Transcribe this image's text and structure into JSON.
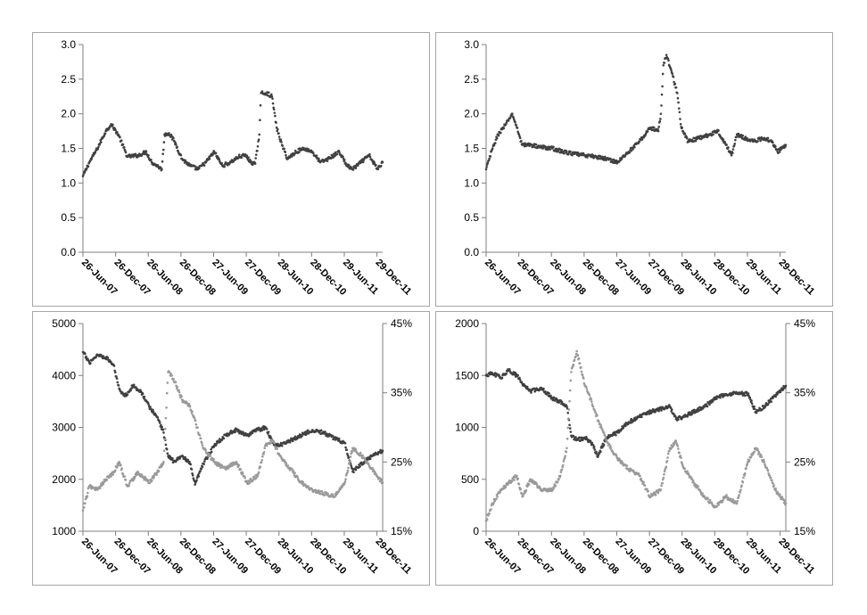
{
  "colors": {
    "primary_series": "#404040",
    "secondary_series": "#9a9a9a",
    "axis": "#7f7f7f",
    "panel_border": "#a6a6a6"
  },
  "chart_data": [
    {
      "type": "scatter",
      "title": "",
      "xlabel": "",
      "ylabel": "",
      "grid": false,
      "x_tick_labels": [
        "26-Jun-07",
        "26-Dec-07",
        "26-Jun-08",
        "26-Dec-08",
        "27-Jun-09",
        "27-Dec-09",
        "28-Jun-10",
        "28-Dec-10",
        "29-Jun-11",
        "29-Dec-11"
      ],
      "y_tick_labels": [
        "0.0",
        "0.5",
        "1.0",
        "1.5",
        "2.0",
        "2.5",
        "3.0"
      ],
      "xlim": [
        "2007-06-26",
        "2012-01-30"
      ],
      "ylim": [
        0,
        3
      ],
      "series": [
        {
          "x": [
            "2007-06-26",
            "2007-08-01",
            "2007-09-15",
            "2007-11-01",
            "2007-12-01",
            "2008-01-10",
            "2008-03-01",
            "2008-05-01",
            "2008-06-15",
            "2008-07-15",
            "2008-08-15",
            "2008-09-10",
            "2008-09-25",
            "2008-10-20",
            "2008-11-20",
            "2009-01-01",
            "2009-02-15",
            "2009-04-01",
            "2009-05-15",
            "2009-07-01",
            "2009-08-15",
            "2009-10-01",
            "2009-11-15",
            "2009-12-25",
            "2010-01-20",
            "2010-02-15",
            "2010-03-10",
            "2010-03-20",
            "2010-04-20",
            "2010-05-20",
            "2010-06-15",
            "2010-07-15",
            "2010-08-15",
            "2010-10-01",
            "2010-11-15",
            "2011-01-01",
            "2011-02-15",
            "2011-04-01",
            "2011-06-01",
            "2011-07-15",
            "2011-08-15",
            "2011-10-01",
            "2011-11-15",
            "2012-01-01",
            "2012-01-30"
          ],
          "y": [
            1.1,
            1.3,
            1.5,
            1.75,
            1.85,
            1.7,
            1.38,
            1.4,
            1.45,
            1.3,
            1.25,
            1.2,
            1.7,
            1.72,
            1.6,
            1.35,
            1.25,
            1.2,
            1.3,
            1.45,
            1.25,
            1.3,
            1.38,
            1.4,
            1.3,
            1.28,
            1.7,
            2.3,
            2.3,
            2.25,
            1.8,
            1.55,
            1.35,
            1.45,
            1.5,
            1.45,
            1.3,
            1.35,
            1.45,
            1.25,
            1.2,
            1.3,
            1.4,
            1.2,
            1.3
          ]
        }
      ]
    },
    {
      "type": "scatter",
      "title": "",
      "xlabel": "",
      "ylabel": "",
      "grid": false,
      "x_tick_labels": [
        "26-Jun-07",
        "26-Dec-07",
        "26-Jun-08",
        "26-Dec-08",
        "27-Jun-09",
        "27-Dec-09",
        "28-Jun-10",
        "28-Dec-10",
        "29-Jun-11",
        "29-Dec-11"
      ],
      "y_tick_labels": [
        "0.0",
        "0.5",
        "1.0",
        "1.5",
        "2.0",
        "2.5",
        "3.0"
      ],
      "xlim": [
        "2007-06-26",
        "2012-01-30"
      ],
      "ylim": [
        0,
        3
      ],
      "series": [
        {
          "x": [
            "2007-06-26",
            "2007-08-01",
            "2007-09-01",
            "2007-10-15",
            "2007-11-20",
            "2007-12-15",
            "2008-01-15",
            "2008-03-01",
            "2008-05-01",
            "2008-07-01",
            "2008-09-01",
            "2008-11-01",
            "2009-01-01",
            "2009-03-01",
            "2009-05-01",
            "2009-07-01",
            "2009-09-01",
            "2009-11-01",
            "2010-01-01",
            "2010-02-15",
            "2010-03-01",
            "2010-03-15",
            "2010-04-01",
            "2010-05-01",
            "2010-06-01",
            "2010-06-20",
            "2010-07-01",
            "2010-08-01",
            "2010-10-01",
            "2010-12-01",
            "2011-01-15",
            "2011-03-01",
            "2011-04-01",
            "2011-05-01",
            "2011-06-15",
            "2011-08-01",
            "2011-10-01",
            "2011-11-15",
            "2011-12-15",
            "2012-01-30"
          ],
          "y": [
            1.2,
            1.5,
            1.7,
            1.85,
            2.0,
            1.8,
            1.55,
            1.55,
            1.52,
            1.5,
            1.45,
            1.42,
            1.4,
            1.38,
            1.35,
            1.3,
            1.45,
            1.6,
            1.8,
            1.75,
            2.0,
            2.7,
            2.85,
            2.6,
            2.3,
            1.85,
            1.75,
            1.6,
            1.65,
            1.7,
            1.75,
            1.55,
            1.4,
            1.7,
            1.65,
            1.6,
            1.65,
            1.6,
            1.45,
            1.55
          ]
        }
      ]
    },
    {
      "type": "scatter",
      "title": "",
      "xlabel": "",
      "ylabel": "",
      "grid": false,
      "x_tick_labels": [
        "26-Jun-07",
        "26-Dec-07",
        "26-Jun-08",
        "26-Dec-08",
        "27-Jun-09",
        "27-Dec-09",
        "28-Jun-10",
        "28-Dec-10",
        "29-Jun-11",
        "29-Dec-11"
      ],
      "y_tick_labels": [
        "1000",
        "2000",
        "3000",
        "4000",
        "5000"
      ],
      "y2_tick_labels": [
        "15%",
        "25%",
        "35%",
        "45%"
      ],
      "xlim": [
        "2007-06-26",
        "2012-01-30"
      ],
      "ylim": [
        1000,
        5000
      ],
      "y2lim": [
        0.15,
        0.45
      ],
      "series": [
        {
          "axis": "left",
          "x": [
            "2007-06-26",
            "2007-08-01",
            "2007-09-15",
            "2007-11-01",
            "2007-12-15",
            "2008-01-15",
            "2008-02-15",
            "2008-04-01",
            "2008-05-15",
            "2008-07-01",
            "2008-08-15",
            "2008-09-20",
            "2008-10-15",
            "2008-11-15",
            "2009-01-01",
            "2009-02-15",
            "2009-03-15",
            "2009-05-01",
            "2009-07-01",
            "2009-09-01",
            "2009-11-01",
            "2010-01-01",
            "2010-03-01",
            "2010-04-15",
            "2010-05-25",
            "2010-07-01",
            "2010-09-01",
            "2010-11-01",
            "2011-01-01",
            "2011-03-01",
            "2011-05-01",
            "2011-07-01",
            "2011-08-15",
            "2011-10-01",
            "2011-12-01",
            "2012-01-30"
          ],
          "y": [
            4450,
            4250,
            4400,
            4350,
            4200,
            3750,
            3600,
            3800,
            3700,
            3400,
            3200,
            2900,
            2450,
            2350,
            2450,
            2300,
            1900,
            2300,
            2650,
            2850,
            2950,
            2850,
            2950,
            3000,
            2700,
            2650,
            2750,
            2850,
            2950,
            2900,
            2800,
            2700,
            2150,
            2300,
            2450,
            2550
          ]
        },
        {
          "axis": "right",
          "x": [
            "2007-06-26",
            "2007-08-01",
            "2007-09-15",
            "2007-11-01",
            "2007-12-15",
            "2008-01-15",
            "2008-03-01",
            "2008-05-01",
            "2008-07-01",
            "2008-08-15",
            "2008-09-20",
            "2008-10-15",
            "2008-11-15",
            "2009-01-01",
            "2009-02-15",
            "2009-03-15",
            "2009-05-01",
            "2009-07-01",
            "2009-09-01",
            "2009-11-01",
            "2010-01-01",
            "2010-03-01",
            "2010-04-15",
            "2010-05-25",
            "2010-07-01",
            "2010-09-01",
            "2010-11-01",
            "2011-01-01",
            "2011-03-01",
            "2011-05-01",
            "2011-07-01",
            "2011-08-15",
            "2011-10-01",
            "2011-12-01",
            "2012-01-30"
          ],
          "y": [
            0.18,
            0.215,
            0.21,
            0.225,
            0.235,
            0.25,
            0.215,
            0.235,
            0.22,
            0.235,
            0.25,
            0.38,
            0.37,
            0.34,
            0.33,
            0.31,
            0.27,
            0.25,
            0.24,
            0.25,
            0.22,
            0.23,
            0.275,
            0.28,
            0.26,
            0.24,
            0.22,
            0.21,
            0.205,
            0.2,
            0.22,
            0.27,
            0.26,
            0.24,
            0.22
          ]
        }
      ]
    },
    {
      "type": "scatter",
      "title": "",
      "xlabel": "",
      "ylabel": "",
      "grid": false,
      "x_tick_labels": [
        "26-Jun-07",
        "26-Dec-07",
        "26-Jun-08",
        "26-Dec-08",
        "27-Jun-09",
        "27-Dec-09",
        "28-Jun-10",
        "28-Dec-10",
        "29-Jun-11",
        "29-Dec-11"
      ],
      "y_tick_labels": [
        "0",
        "500",
        "1000",
        "1500",
        "2000"
      ],
      "y2_tick_labels": [
        "15%",
        "25%",
        "35%",
        "45%"
      ],
      "xlim": [
        "2007-06-26",
        "2012-01-30"
      ],
      "ylim": [
        0,
        2000
      ],
      "y2lim": [
        0.15,
        0.45
      ],
      "series": [
        {
          "axis": "left",
          "x": [
            "2007-06-26",
            "2007-08-01",
            "2007-09-15",
            "2007-11-01",
            "2007-12-15",
            "2008-01-15",
            "2008-03-01",
            "2008-05-01",
            "2008-07-01",
            "2008-08-15",
            "2008-09-20",
            "2008-10-15",
            "2008-11-15",
            "2009-01-01",
            "2009-02-15",
            "2009-03-10",
            "2009-05-01",
            "2009-07-01",
            "2009-09-01",
            "2009-11-01",
            "2010-01-01",
            "2010-03-01",
            "2010-04-20",
            "2010-05-25",
            "2010-07-01",
            "2010-09-01",
            "2010-11-01",
            "2011-01-01",
            "2011-03-01",
            "2011-05-01",
            "2011-07-01",
            "2011-08-15",
            "2011-10-01",
            "2011-12-01",
            "2012-01-30"
          ],
          "y": [
            1500,
            1520,
            1480,
            1550,
            1500,
            1420,
            1350,
            1380,
            1280,
            1250,
            1200,
            920,
            880,
            900,
            830,
            720,
            900,
            950,
            1050,
            1100,
            1150,
            1180,
            1200,
            1080,
            1100,
            1150,
            1200,
            1280,
            1320,
            1330,
            1320,
            1150,
            1200,
            1300,
            1400
          ]
        },
        {
          "axis": "right",
          "x": [
            "2007-06-26",
            "2007-08-01",
            "2007-09-15",
            "2007-11-01",
            "2007-12-15",
            "2008-01-15",
            "2008-03-01",
            "2008-05-01",
            "2008-07-01",
            "2008-08-15",
            "2008-09-20",
            "2008-10-15",
            "2008-11-15",
            "2009-01-01",
            "2009-02-15",
            "2009-03-15",
            "2009-05-01",
            "2009-07-01",
            "2009-09-01",
            "2009-11-01",
            "2010-01-01",
            "2010-03-01",
            "2010-04-20",
            "2010-05-25",
            "2010-07-01",
            "2010-09-01",
            "2010-11-01",
            "2011-01-01",
            "2011-03-01",
            "2011-05-01",
            "2011-07-01",
            "2011-08-15",
            "2011-10-01",
            "2011-12-01",
            "2012-01-30"
          ],
          "y": [
            0.165,
            0.19,
            0.21,
            0.22,
            0.23,
            0.2,
            0.225,
            0.21,
            0.21,
            0.23,
            0.27,
            0.38,
            0.41,
            0.36,
            0.33,
            0.31,
            0.28,
            0.255,
            0.24,
            0.23,
            0.2,
            0.21,
            0.27,
            0.28,
            0.245,
            0.22,
            0.2,
            0.185,
            0.2,
            0.19,
            0.25,
            0.27,
            0.25,
            0.21,
            0.19
          ]
        }
      ]
    }
  ]
}
